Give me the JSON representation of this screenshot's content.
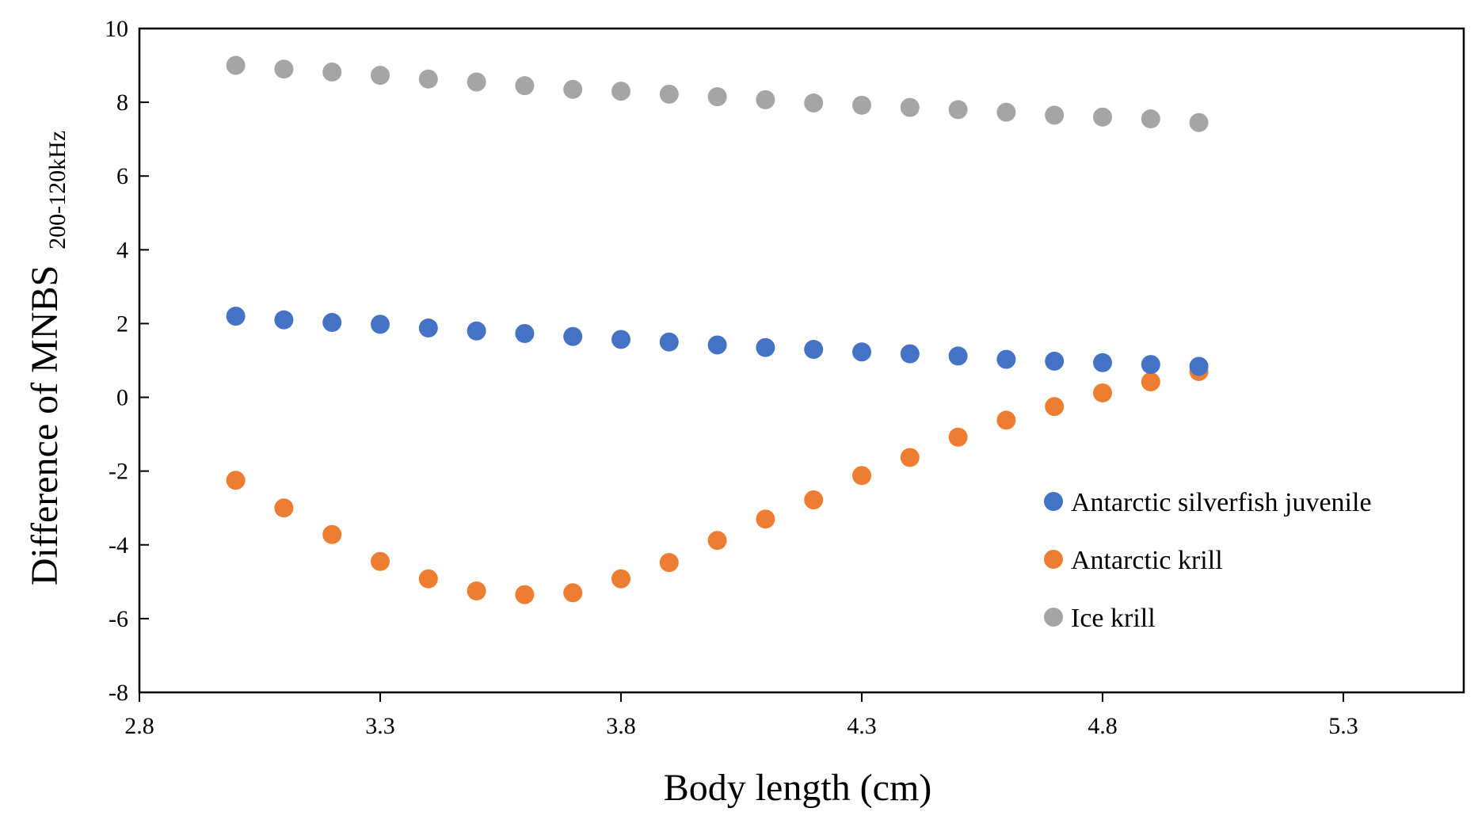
{
  "chart_data": {
    "type": "scatter",
    "title": "",
    "xlabel": "Body length (cm)",
    "ylabel_main": "Difference of MNBS",
    "ylabel_sub": "200-120kHz",
    "xlim": [
      2.8,
      5.55
    ],
    "ylim": [
      -8,
      10
    ],
    "xticks": [
      2.8,
      3.3,
      3.8,
      4.3,
      4.8,
      5.3
    ],
    "xtick_labels": [
      "2.8",
      "3.3",
      "3.8",
      "4.3",
      "4.8",
      "5.3"
    ],
    "yticks": [
      -8,
      -6,
      -4,
      -2,
      0,
      2,
      4,
      6,
      8,
      10
    ],
    "ytick_labels": [
      "-8",
      "-6",
      "-4",
      "-2",
      "0",
      "2",
      "4",
      "6",
      "8",
      "10"
    ],
    "grid": false,
    "legend_position": "right",
    "x": [
      3.0,
      3.1,
      3.2,
      3.3,
      3.4,
      3.5,
      3.6,
      3.7,
      3.8,
      3.9,
      4.0,
      4.1,
      4.2,
      4.3,
      4.4,
      4.5,
      4.6,
      4.7,
      4.8,
      4.9,
      5.0
    ],
    "series": [
      {
        "name": "Antarctic silverfish juvenile",
        "color": "#4472C4",
        "values": [
          2.2,
          2.1,
          2.03,
          1.98,
          1.88,
          1.8,
          1.73,
          1.65,
          1.57,
          1.5,
          1.42,
          1.35,
          1.3,
          1.23,
          1.18,
          1.12,
          1.03,
          0.98,
          0.94,
          0.89,
          0.84
        ]
      },
      {
        "name": "Antarctic krill",
        "color": "#ED7D31",
        "values": [
          -2.25,
          -3.0,
          -3.72,
          -4.45,
          -4.92,
          -5.25,
          -5.35,
          -5.3,
          -4.92,
          -4.48,
          -3.88,
          -3.3,
          -2.78,
          -2.12,
          -1.63,
          -1.08,
          -0.62,
          -0.25,
          0.12,
          0.42,
          0.7
        ]
      },
      {
        "name": "Ice krill",
        "color": "#A5A5A5",
        "values": [
          9.0,
          8.9,
          8.82,
          8.73,
          8.63,
          8.55,
          8.45,
          8.35,
          8.3,
          8.22,
          8.15,
          8.07,
          7.98,
          7.92,
          7.86,
          7.8,
          7.73,
          7.65,
          7.6,
          7.55,
          7.45
        ]
      }
    ]
  }
}
